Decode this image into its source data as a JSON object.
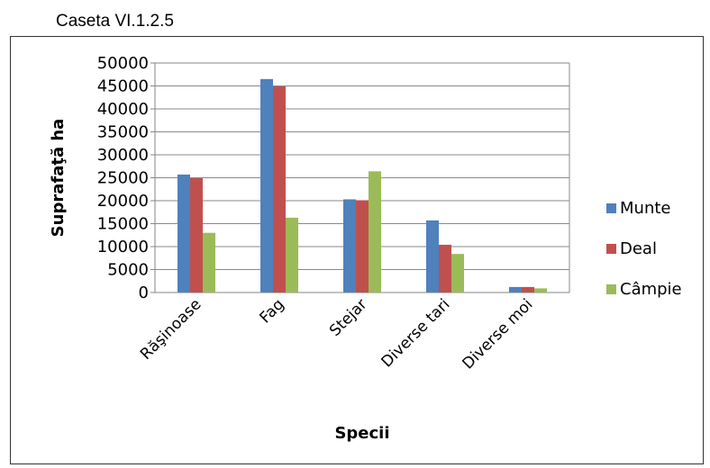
{
  "caption": "Caseta VI.1.2.5",
  "chart_data": {
    "type": "bar",
    "title": "",
    "xlabel": "Specii",
    "ylabel": "Suprafaţă ha",
    "ylim": [
      0,
      50000
    ],
    "y_ticks": [
      0,
      5000,
      10000,
      15000,
      20000,
      25000,
      30000,
      35000,
      40000,
      45000,
      50000
    ],
    "grid": true,
    "legend_position": "right",
    "categories": [
      "Răşinoase",
      "Fag",
      "Stejar",
      "Diverse tari",
      "Diverse moi"
    ],
    "series": [
      {
        "name": "Munte",
        "color": "#4f81bd",
        "values": [
          25700,
          46500,
          20300,
          15700,
          1200
        ]
      },
      {
        "name": "Deal",
        "color": "#c0504d",
        "values": [
          24900,
          44900,
          20100,
          10400,
          1200
        ]
      },
      {
        "name": "Câmpie",
        "color": "#9bbb59",
        "values": [
          13000,
          16300,
          26400,
          8400,
          900
        ]
      }
    ]
  }
}
